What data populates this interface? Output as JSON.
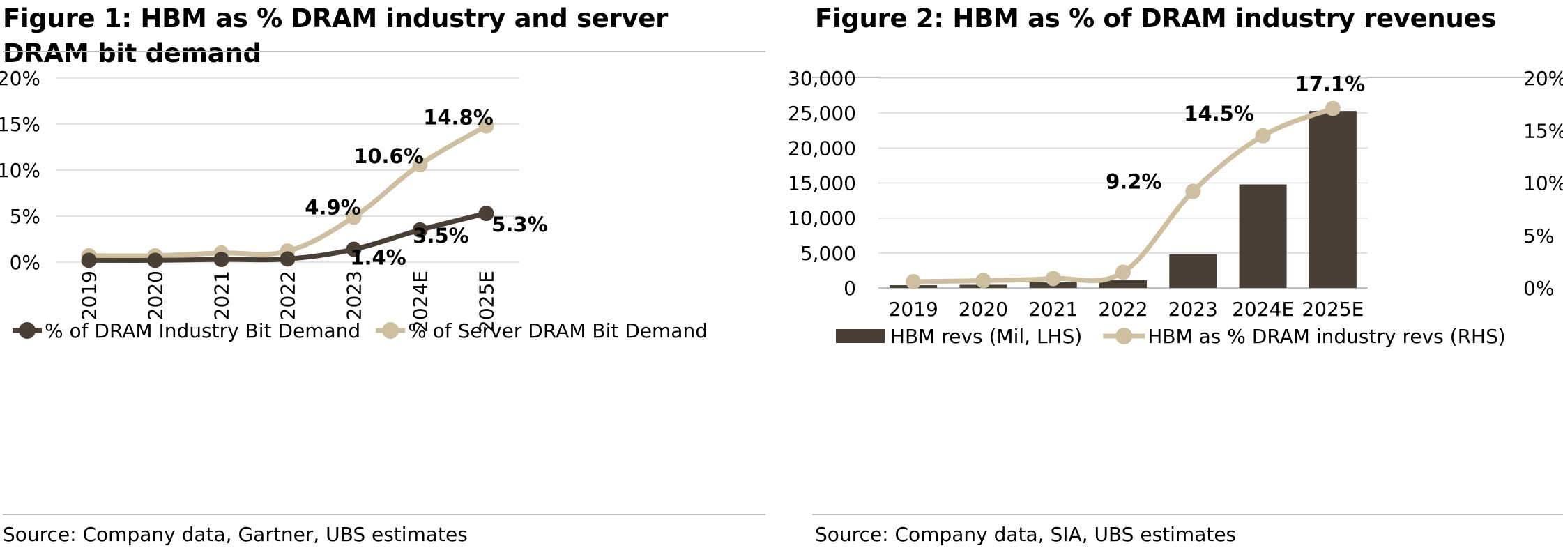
{
  "figures": [
    {
      "title": "Figure 1: HBM as % DRAM industry and server DRAM bit demand",
      "source": "Source: Company data, Gartner, UBS estimates"
    },
    {
      "title": "Figure 2: HBM as % of DRAM industry revenues",
      "source": "Source: Company data, SIA, UBS estimates"
    }
  ],
  "colors": {
    "dark": "#4a3f35",
    "light": "#cdbf9f",
    "grid": "#d9d9d9",
    "axis": "#bfbfbf"
  },
  "chart_data": [
    {
      "type": "line",
      "categories": [
        "2019",
        "2020",
        "2021",
        "2022",
        "2023",
        "2024E",
        "2025E"
      ],
      "ylim": [
        0,
        20
      ],
      "yticks": [
        "0%",
        "5%",
        "10%",
        "15%",
        "20%"
      ],
      "ytick_values": [
        0,
        5,
        10,
        15,
        20
      ],
      "grid": true,
      "legend": "bottom",
      "series": [
        {
          "name": "% of DRAM Industry Bit Demand",
          "color": "#4a3f35",
          "values": [
            0.2,
            0.2,
            0.3,
            0.35,
            1.4,
            3.5,
            5.3
          ],
          "labels": [
            "",
            "",
            "",
            "",
            "1.4%",
            "3.5%",
            "5.3%"
          ]
        },
        {
          "name": "% of Server DRAM Bit Demand",
          "color": "#cdbf9f",
          "values": [
            0.7,
            0.7,
            1.0,
            1.2,
            4.9,
            10.6,
            14.8
          ],
          "labels": [
            "",
            "",
            "",
            "",
            "4.9%",
            "10.6%",
            "14.8%"
          ]
        }
      ]
    },
    {
      "type": "bar",
      "categories": [
        "2019",
        "2020",
        "2021",
        "2022",
        "2023",
        "2024E",
        "2025E"
      ],
      "ylim_left": [
        0,
        30000
      ],
      "yticks_left": [
        "0",
        "5,000",
        "10,000",
        "15,000",
        "20,000",
        "25,000",
        "30,000"
      ],
      "ytick_values_left": [
        0,
        5000,
        10000,
        15000,
        20000,
        25000,
        30000
      ],
      "ylim_right": [
        0,
        20
      ],
      "yticks_right": [
        "0%",
        "5%",
        "10%",
        "15%",
        "20%"
      ],
      "ytick_values_right": [
        0,
        5,
        10,
        15,
        20
      ],
      "grid": true,
      "legend": "bottom",
      "series": [
        {
          "name": "HBM revs (Mil, LHS)",
          "type": "bar",
          "axis": "left",
          "color": "#4a3f35",
          "values": [
            400,
            450,
            800,
            1100,
            4800,
            14800,
            25300
          ]
        },
        {
          "name": "HBM as % DRAM industry revs (RHS)",
          "type": "line",
          "axis": "right",
          "color": "#cdbf9f",
          "values": [
            0.6,
            0.7,
            0.9,
            1.5,
            9.2,
            14.5,
            17.1
          ],
          "labels": [
            "",
            "",
            "",
            "",
            "9.2%",
            "14.5%",
            "17.1%"
          ]
        }
      ]
    }
  ]
}
